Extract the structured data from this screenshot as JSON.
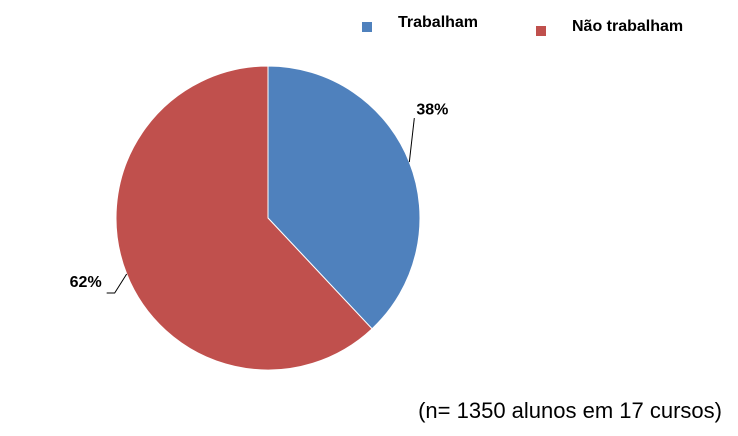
{
  "chart_data": {
    "type": "pie",
    "categories": [
      "Trabalham",
      "Não trabalham"
    ],
    "values": [
      38,
      62
    ],
    "value_labels": [
      "38%",
      "62%"
    ],
    "colors": [
      "#4f81bd",
      "#c0504d"
    ],
    "legend": "top-right",
    "annotation": "(n= 1350 alunos em 17 cursos)"
  }
}
